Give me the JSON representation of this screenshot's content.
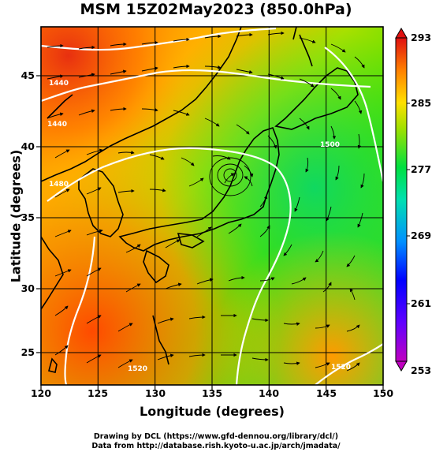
{
  "title": "MSM 15Z02May2023 (850.0hPa)",
  "x_axis": {
    "label": "Longitude (degrees)",
    "ticks": [
      "120",
      "125",
      "130",
      "135",
      "140",
      "145",
      "150"
    ],
    "range": [
      120,
      150
    ]
  },
  "y_axis": {
    "label": "Latitude  (degrees)",
    "ticks": [
      "25",
      "30",
      "35",
      "40",
      "45"
    ],
    "range": [
      22.4,
      47.6
    ]
  },
  "colorbar": {
    "ticks": [
      "293",
      "285",
      "277",
      "269",
      "261",
      "253"
    ],
    "range": [
      253,
      293
    ],
    "colors": [
      "#c000c0",
      "#0000ff",
      "#00d0ff",
      "#00e070",
      "#40e000",
      "#b0e000",
      "#ffd000",
      "#ff9000",
      "#ff4000",
      "#e01010"
    ]
  },
  "contour_labels": [
    "1440",
    "1440",
    "1480",
    "1500",
    "1520",
    "1520"
  ],
  "credits": {
    "line1": "Drawing by DCL (https://www.gfd-dennou.org/library/dcl/)",
    "line2": "Data from http://database.rish.kyoto-u.ac.jp/arch/jmadata/"
  }
}
